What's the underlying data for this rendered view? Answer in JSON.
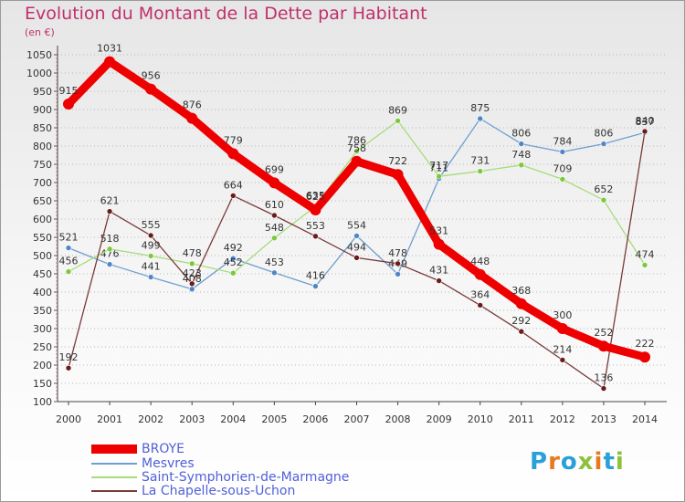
{
  "header": {
    "title": "Evolution du Montant de la Dette par Habitant",
    "subtitle": "(en €)"
  },
  "brand": {
    "name": "Proxiti",
    "letter_colors": [
      "#2aa0d8",
      "#e87a1e",
      "#2aa0d8",
      "#8bc23a",
      "#e87a1e",
      "#2aa0d8",
      "#8bc23a"
    ]
  },
  "chart_data": {
    "type": "line",
    "title": "Evolution du Montant de la Dette par Habitant",
    "subtitle": "(en €)",
    "x": [
      "2000",
      "2001",
      "2002",
      "2003",
      "2004",
      "2005",
      "2006",
      "2007",
      "2008",
      "2009",
      "2010",
      "2011",
      "2012",
      "2013",
      "2014"
    ],
    "ylim": [
      100,
      1050
    ],
    "yticks": [
      100,
      150,
      200,
      250,
      300,
      350,
      400,
      450,
      500,
      550,
      600,
      650,
      700,
      750,
      800,
      850,
      900,
      950,
      1000,
      1050
    ],
    "grid": "horizontal-dotted",
    "legend_position": "bottom-left",
    "series": [
      {
        "name": "BROYE",
        "color": "#ee0000",
        "marker_color": "#ee0000",
        "bold": true,
        "values": [
          915,
          1031,
          956,
          876,
          779,
          699,
          625,
          758,
          722,
          531,
          448,
          368,
          300,
          252,
          222
        ]
      },
      {
        "name": "Mesvres",
        "color": "#6f9fd0",
        "marker_color": "#4f86c8",
        "bold": false,
        "values": [
          521,
          476,
          441,
          408,
          492,
          453,
          416,
          554,
          449,
          711,
          875,
          806,
          784,
          806,
          837
        ]
      },
      {
        "name": "Saint-Symphorien-de-Marmagne",
        "color": "#a6dc7c",
        "marker_color": "#7cc83c",
        "bold": false,
        "values": [
          456,
          518,
          499,
          478,
          452,
          548,
          635,
          786,
          869,
          717,
          731,
          748,
          709,
          652,
          474
        ]
      },
      {
        "name": "La Chapelle-sous-Uchon",
        "color": "#7a3a3a",
        "marker_color": "#6a1b1b",
        "bold": false,
        "values": [
          192,
          621,
          555,
          423,
          664,
          610,
          553,
          494,
          478,
          431,
          364,
          292,
          214,
          136,
          840
        ]
      }
    ]
  }
}
